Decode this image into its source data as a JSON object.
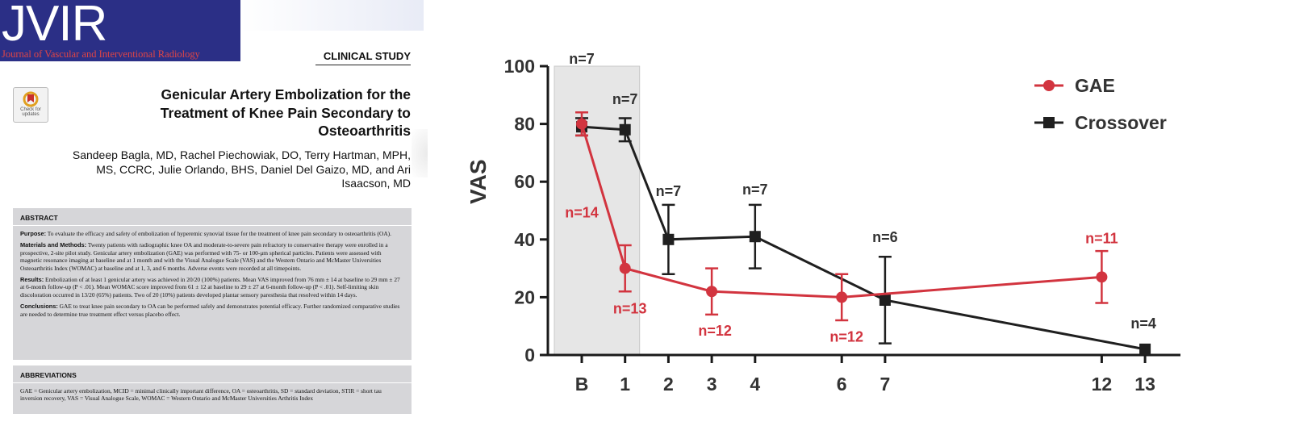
{
  "paper": {
    "journal_logo": "JVIR",
    "journal_name": "Journal of Vascular and Interventional Radiology",
    "study_type": "CLINICAL STUDY",
    "check_badge": "Check for updates",
    "title": "Genicular Artery Embolization for the Treatment of Knee Pain Secondary to Osteoarthritis",
    "authors": "Sandeep Bagla, MD, Rachel Piechowiak, DO, Terry Hartman, MPH, MS, CCRC, Julie Orlando, BHS, Daniel Del Gaizo, MD, and Ari Isaacson, MD",
    "abstract": {
      "heading": "ABSTRACT",
      "purpose_label": "Purpose:",
      "purpose": "To evaluate the efficacy and safety of embolization of hyperemic synovial tissue for the treatment of knee pain secondary to osteoarthritis (OA).",
      "methods_label": "Materials and Methods:",
      "methods": "Twenty patients with radiographic knee OA and moderate-to-severe pain refractory to conservative therapy were enrolled in a prospective, 2-site pilot study. Genicular artery embolization (GAE) was performed with 75- or 100-μm spherical particles. Patients were assessed with magnetic resonance imaging at baseline and at 1 month and with the Visual Analogue Scale (VAS) and the Western Ontario and McMaster Universities Osteoarthritis Index (WOMAC) at baseline and at 1, 3, and 6 months. Adverse events were recorded at all timepoints.",
      "results_label": "Results:",
      "results": "Embolization of at least 1 genicular artery was achieved in 20/20 (100%) patients. Mean VAS improved from 76 mm ± 14 at baseline to 29 mm ± 27 at 6-month follow-up (P < .01). Mean WOMAC score improved from 61 ± 12 at baseline to 29 ± 27 at 6-month follow-up (P < .01). Self-limiting skin discoloration occurred in 13/20 (65%) patients. Two of 20 (10%) patients developed plantar sensory paresthesia that resolved within 14 days.",
      "conclusions_label": "Conclusions:",
      "conclusions": "GAE to treat knee pain secondary to OA can be performed safely and demonstrates potential efficacy. Further randomized comparative studies are needed to determine true treatment effect versus placebo effect."
    },
    "abbreviations": {
      "heading": "ABBREVIATIONS",
      "text": "GAE = Genicular artery embolization, MCID = minimal clinically important difference, OA = osteoarthritis, SD = standard deviation, STIR = short tau inversion recovery, VAS = Visual Analogue Scale, WOMAC = Western Ontario and McMaster Universities Arthritis Index"
    }
  },
  "chart_data": {
    "type": "line",
    "ylabel": "VAS",
    "xlabel": "",
    "ylim": [
      0,
      100
    ],
    "yticks": [
      0,
      20,
      40,
      60,
      80,
      100
    ],
    "x_categories": [
      "B",
      "1",
      "2",
      "3",
      "4",
      "6",
      "7",
      "12",
      "13"
    ],
    "x_positions": [
      0,
      1,
      2,
      3,
      4,
      6,
      7,
      12,
      13
    ],
    "baseline_shaded_x": [
      0,
      1
    ],
    "legend_position": "top-right",
    "series": [
      {
        "name": "GAE",
        "color": "#d2343f",
        "marker": "circle",
        "points": [
          {
            "x": 0,
            "y": 80,
            "err": 4,
            "n_label": "n=14"
          },
          {
            "x": 1,
            "y": 30,
            "err": 8,
            "n_label": "n=13"
          },
          {
            "x": 3,
            "y": 22,
            "err": 8,
            "n_label": "n=12"
          },
          {
            "x": 6,
            "y": 20,
            "err": 8,
            "n_label": "n=12"
          },
          {
            "x": 12,
            "y": 27,
            "err": 9,
            "n_label": "n=11"
          }
        ]
      },
      {
        "name": "Crossover",
        "color": "#1f1f1f",
        "marker": "square",
        "points": [
          {
            "x": 0,
            "y": 79,
            "err": 3,
            "n_label": "n=7"
          },
          {
            "x": 1,
            "y": 78,
            "err": 4,
            "n_label": "n=7"
          },
          {
            "x": 2,
            "y": 40,
            "err": 12,
            "n_label": "n=7"
          },
          {
            "x": 4,
            "y": 41,
            "err": 11,
            "n_label": "n=7"
          },
          {
            "x": 7,
            "y": 19,
            "err": 15,
            "n_label": "n=6"
          },
          {
            "x": 13,
            "y": 2,
            "err": 0,
            "n_label": "n=4"
          }
        ]
      }
    ]
  }
}
